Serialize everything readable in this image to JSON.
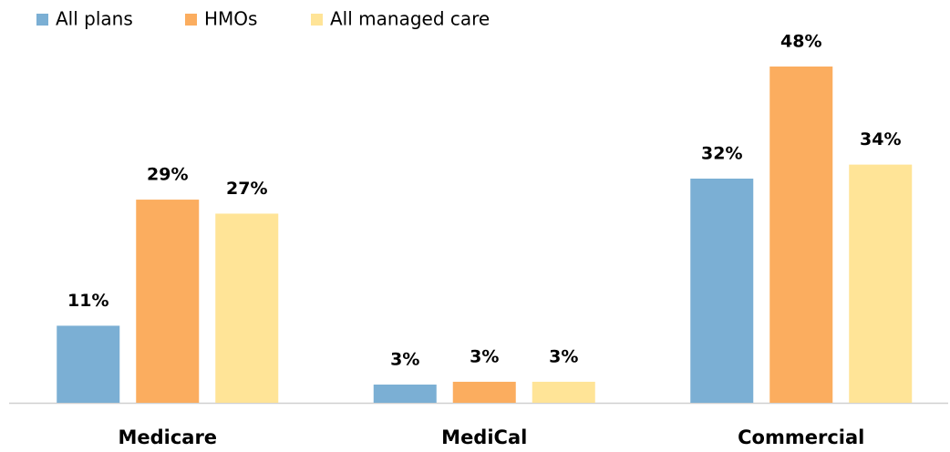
{
  "chart_data": {
    "type": "bar",
    "categories": [
      "Medicare",
      "MediCal",
      "Commercial"
    ],
    "series": [
      {
        "name": "All plans",
        "color": "#7bafd4",
        "values": [
          11,
          2.6,
          32
        ],
        "value_labels": [
          "11%",
          "3%",
          "32%"
        ]
      },
      {
        "name": "HMOs",
        "color": "#fbad5f",
        "values": [
          29,
          3,
          48
        ],
        "value_labels": [
          "29%",
          "3%",
          "48%"
        ]
      },
      {
        "name": "All managed care",
        "color": "#ffe497",
        "values": [
          27,
          3,
          34
        ],
        "value_labels": [
          "27%",
          "3%",
          "34%"
        ]
      }
    ],
    "legend": "top-left"
  }
}
